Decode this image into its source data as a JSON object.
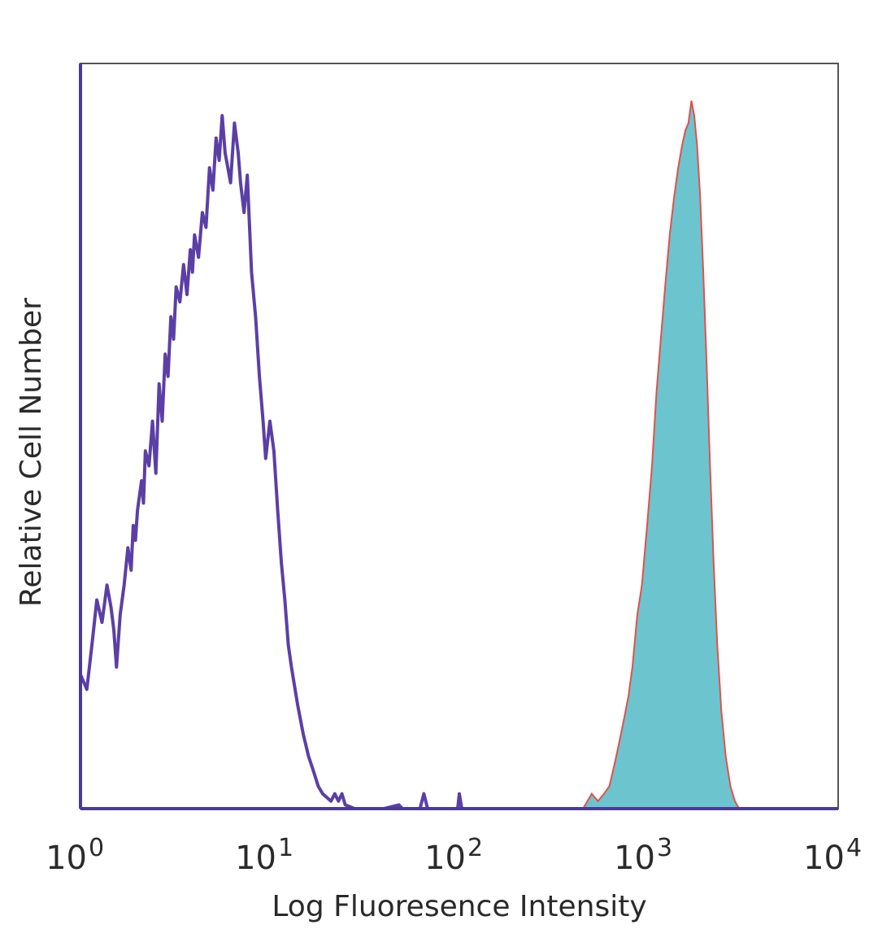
{
  "chart_data": {
    "type": "area",
    "xlabel": "Log Fluoresence Intensity",
    "ylabel": "Relative Cell Number",
    "xscale": "log",
    "xlim": [
      1,
      10000
    ],
    "ylim": [
      0,
      100
    ],
    "x_ticks": [
      {
        "base": "10",
        "exp": "0",
        "value": 1
      },
      {
        "base": "10",
        "exp": "1",
        "value": 10
      },
      {
        "base": "10",
        "exp": "2",
        "value": 100
      },
      {
        "base": "10",
        "exp": "3",
        "value": 1000
      },
      {
        "base": "10",
        "exp": "4",
        "value": 10000
      }
    ],
    "grid": false,
    "legend": "none",
    "series": [
      {
        "style": "outline",
        "color": "#5b3fa6",
        "points": [
          [
            1.0,
            18
          ],
          [
            1.08,
            16
          ],
          [
            1.15,
            22
          ],
          [
            1.22,
            28
          ],
          [
            1.3,
            25
          ],
          [
            1.38,
            30
          ],
          [
            1.45,
            27
          ],
          [
            1.5,
            24
          ],
          [
            1.55,
            19
          ],
          [
            1.62,
            26
          ],
          [
            1.7,
            30
          ],
          [
            1.78,
            35
          ],
          [
            1.85,
            32
          ],
          [
            1.9,
            38
          ],
          [
            1.95,
            36
          ],
          [
            2.0,
            40
          ],
          [
            2.1,
            44
          ],
          [
            2.15,
            41
          ],
          [
            2.2,
            48
          ],
          [
            2.3,
            46
          ],
          [
            2.4,
            52
          ],
          [
            2.5,
            45
          ],
          [
            2.6,
            57
          ],
          [
            2.7,
            52
          ],
          [
            2.8,
            61
          ],
          [
            2.9,
            58
          ],
          [
            3.0,
            66
          ],
          [
            3.1,
            63
          ],
          [
            3.2,
            70
          ],
          [
            3.35,
            68
          ],
          [
            3.5,
            73
          ],
          [
            3.65,
            69
          ],
          [
            3.8,
            75
          ],
          [
            3.9,
            72
          ],
          [
            4.0,
            77
          ],
          [
            4.2,
            74
          ],
          [
            4.4,
            80
          ],
          [
            4.6,
            78
          ],
          [
            4.8,
            86
          ],
          [
            5.0,
            83
          ],
          [
            5.2,
            90
          ],
          [
            5.4,
            87
          ],
          [
            5.6,
            93
          ],
          [
            5.8,
            88
          ],
          [
            6.0,
            86
          ],
          [
            6.2,
            84
          ],
          [
            6.5,
            92
          ],
          [
            6.8,
            88
          ],
          [
            7.0,
            84
          ],
          [
            7.3,
            80
          ],
          [
            7.6,
            85
          ],
          [
            8.0,
            72
          ],
          [
            8.4,
            66
          ],
          [
            8.8,
            58
          ],
          [
            9.2,
            52
          ],
          [
            9.5,
            47
          ],
          [
            10.0,
            52
          ],
          [
            10.5,
            48
          ],
          [
            11.0,
            40
          ],
          [
            11.5,
            33
          ],
          [
            12.0,
            28
          ],
          [
            12.5,
            22
          ],
          [
            13.0,
            19
          ],
          [
            14.0,
            14
          ],
          [
            15.0,
            10
          ],
          [
            16.0,
            7
          ],
          [
            17.0,
            5
          ],
          [
            18.0,
            3
          ],
          [
            19.0,
            2
          ],
          [
            20.0,
            1.5
          ],
          [
            21.0,
            1
          ],
          [
            22.0,
            2
          ],
          [
            23.0,
            1
          ],
          [
            24.0,
            2
          ],
          [
            25.0,
            0.5
          ],
          [
            28.0,
            0
          ],
          [
            40.0,
            0
          ],
          [
            48.0,
            0.5
          ],
          [
            50.0,
            0
          ],
          [
            62.0,
            0
          ],
          [
            65.0,
            2
          ],
          [
            68.0,
            0
          ],
          [
            98.0,
            0
          ],
          [
            100.0,
            2
          ],
          [
            103.0,
            0
          ],
          [
            10000,
            0
          ]
        ]
      },
      {
        "style": "filled",
        "color": "#e0524a",
        "fill": "#6cc4cf",
        "points": [
          [
            450,
            0
          ],
          [
            500,
            2
          ],
          [
            540,
            1
          ],
          [
            580,
            2
          ],
          [
            620,
            3
          ],
          [
            660,
            6
          ],
          [
            700,
            9
          ],
          [
            740,
            12
          ],
          [
            780,
            15
          ],
          [
            820,
            19
          ],
          [
            870,
            26
          ],
          [
            920,
            30
          ],
          [
            980,
            38
          ],
          [
            1040,
            46
          ],
          [
            1100,
            56
          ],
          [
            1150,
            62
          ],
          [
            1220,
            70
          ],
          [
            1290,
            77
          ],
          [
            1360,
            82
          ],
          [
            1430,
            86
          ],
          [
            1500,
            89
          ],
          [
            1560,
            91
          ],
          [
            1620,
            92
          ],
          [
            1680,
            95
          ],
          [
            1740,
            93
          ],
          [
            1800,
            89
          ],
          [
            1870,
            82
          ],
          [
            1940,
            72
          ],
          [
            2020,
            60
          ],
          [
            2100,
            47
          ],
          [
            2200,
            33
          ],
          [
            2300,
            22
          ],
          [
            2420,
            13
          ],
          [
            2550,
            7
          ],
          [
            2700,
            3
          ],
          [
            2850,
            1
          ],
          [
            3000,
            0
          ]
        ]
      }
    ]
  }
}
